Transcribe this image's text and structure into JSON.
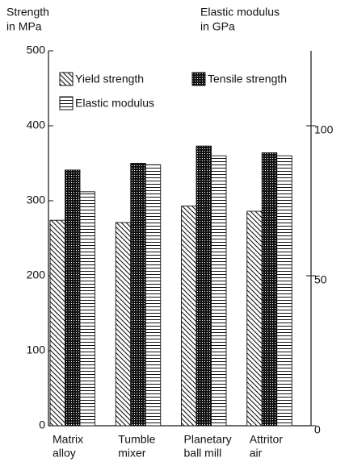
{
  "chart_data": {
    "type": "bar",
    "ylabel": [
      "Strength",
      "in MPa"
    ],
    "y2label": [
      "Elastic modulus",
      "in GPa"
    ],
    "categories": [
      [
        "Matrix",
        "alloy"
      ],
      [
        "Tumble",
        "mixer"
      ],
      [
        "Planetary",
        "ball mill"
      ],
      [
        "Attritor",
        "air"
      ]
    ],
    "series": [
      {
        "name": "Yield strength",
        "color": "#111111",
        "pattern": "diagonal",
        "values": [
          274,
          271,
          293,
          286
        ]
      },
      {
        "name": "Tensile strength",
        "color": "#111111",
        "pattern": "crosshatch",
        "values": [
          341,
          350,
          373,
          364
        ]
      },
      {
        "name": "Elastic modulus",
        "color": "#111111",
        "pattern": "horizontal",
        "axis": "y2",
        "values": [
          78,
          87,
          90,
          90
        ]
      }
    ],
    "ylim": [
      0,
      500
    ],
    "yticks": [
      0,
      100,
      200,
      300,
      400,
      500
    ],
    "y2lim": [
      0,
      125
    ],
    "y2ticks": [
      0,
      50,
      100
    ],
    "legend": "upper left"
  }
}
